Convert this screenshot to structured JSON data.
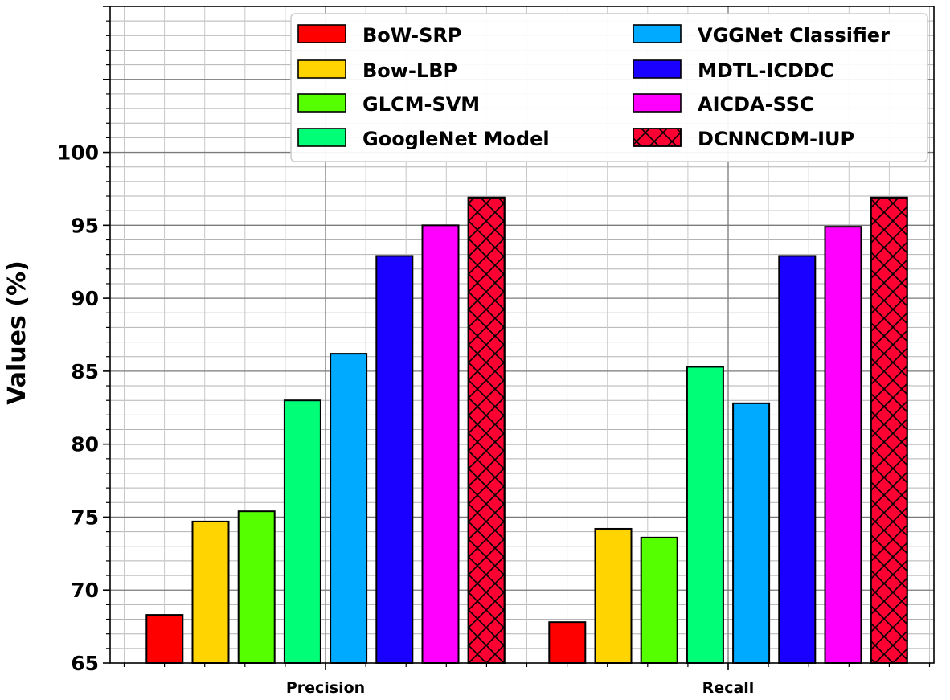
{
  "chart_data": {
    "type": "bar",
    "title": "",
    "xlabel": "",
    "ylabel": "Values (%)",
    "ylim": [
      65,
      110
    ],
    "yticks": [
      "65",
      "70",
      "75",
      "80",
      "85",
      "90",
      "95",
      "100"
    ],
    "categories": [
      "Precision",
      "Recall"
    ],
    "grid": true,
    "legend_position": "top-right",
    "series": [
      {
        "name": "BoW-SRP",
        "color": "#ff0000",
        "values": [
          68.3,
          67.8
        ]
      },
      {
        "name": "Bow-LBP",
        "color": "#ffd400",
        "values": [
          74.7,
          74.2
        ]
      },
      {
        "name": "GLCM-SVM",
        "color": "#55ff00",
        "values": [
          75.4,
          73.6
        ]
      },
      {
        "name": "GoogleNet Model",
        "color": "#00ff77",
        "values": [
          83.0,
          85.3
        ]
      },
      {
        "name": "VGGNet Classifier",
        "color": "#00aaff",
        "values": [
          86.2,
          82.8
        ]
      },
      {
        "name": "MDTL-ICDDC",
        "color": "#1a00ff",
        "values": [
          92.9,
          92.9
        ]
      },
      {
        "name": "AICDA-SSC",
        "color": "#ff00ff",
        "values": [
          95.0,
          94.9
        ]
      },
      {
        "name": "DCNNCDM-IUP",
        "color": "#ff0033",
        "hatch": "cross",
        "values": [
          96.9,
          96.9
        ]
      }
    ]
  }
}
